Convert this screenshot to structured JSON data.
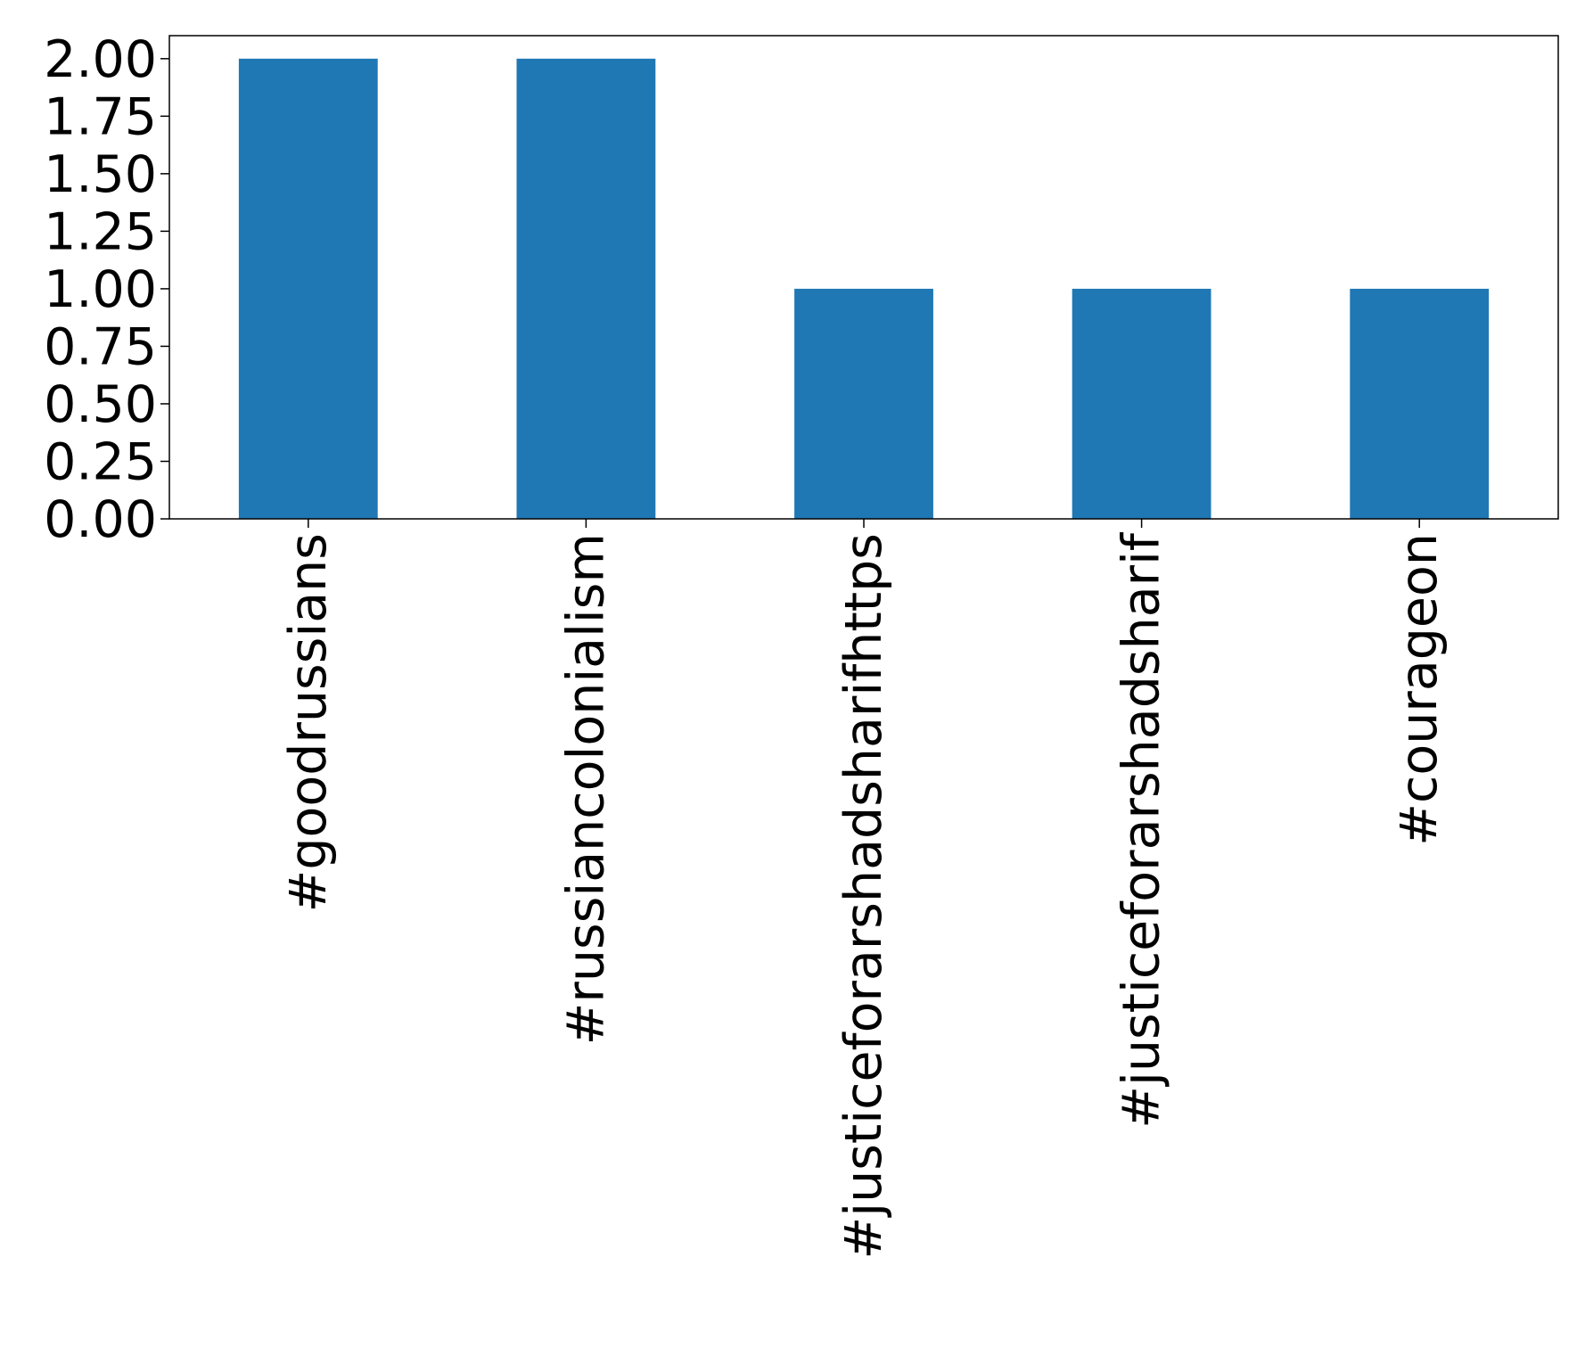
{
  "chart_data": {
    "type": "bar",
    "categories": [
      "#goodrussians",
      "#russiancolonialism",
      "#justiceforarshadsharifhttps",
      "#justiceforarshadsharif",
      "#courageon"
    ],
    "values": [
      2,
      2,
      1,
      1,
      1
    ],
    "yticks": [
      "0.00",
      "0.25",
      "0.50",
      "0.75",
      "1.00",
      "1.25",
      "1.50",
      "1.75",
      "2.00"
    ],
    "ylim": [
      0,
      2.1
    ],
    "title": "",
    "xlabel": "",
    "ylabel": "",
    "grid": false,
    "bar_color": "#1f77b4"
  }
}
